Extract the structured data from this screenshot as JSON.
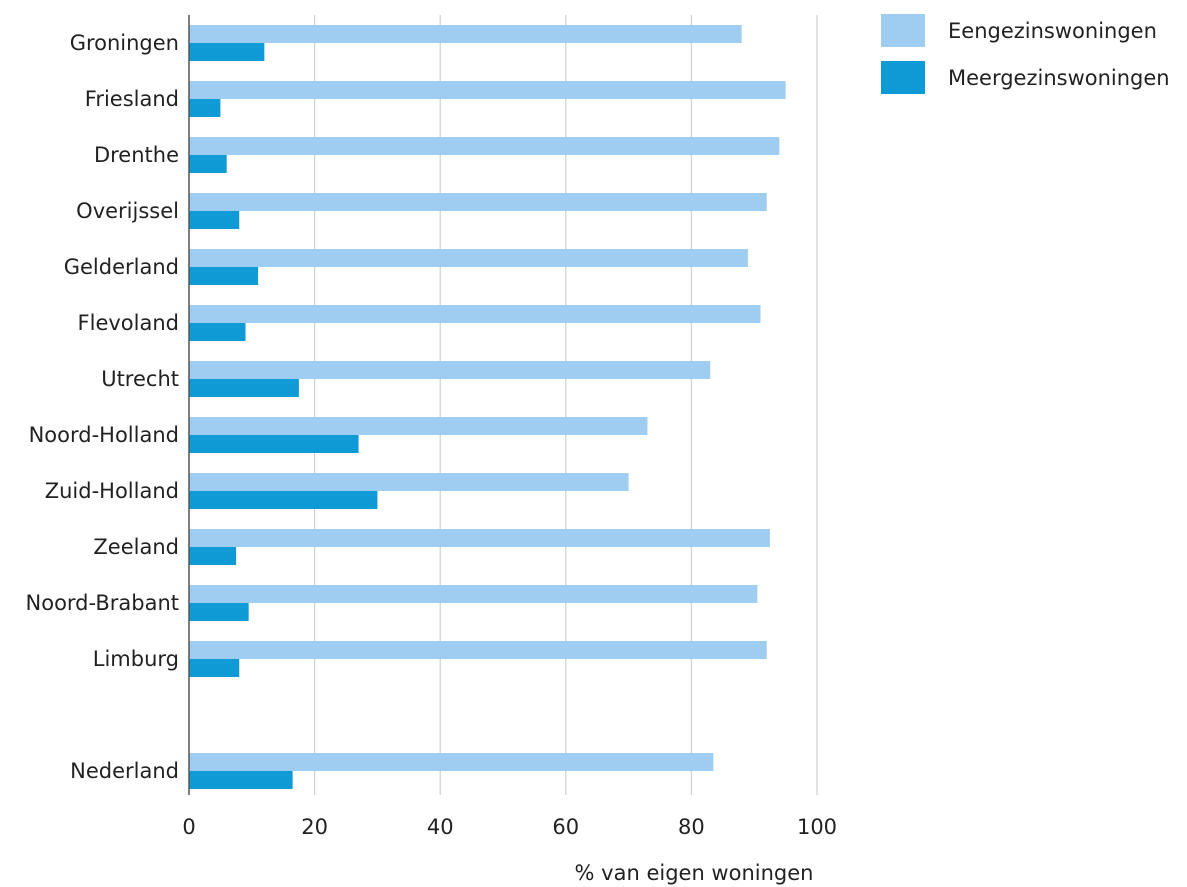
{
  "chart_data": {
    "type": "bar",
    "orientation": "horizontal",
    "categories": [
      "Groningen",
      "Friesland",
      "Drenthe",
      "Overijssel",
      "Gelderland",
      "Flevoland",
      "Utrecht",
      "Noord-Holland",
      "Zuid-Holland",
      "Zeeland",
      "Noord-Brabant",
      "Limburg",
      "Nederland"
    ],
    "series": [
      {
        "name": "Eengezinswoningen",
        "color": "#9fcdf1",
        "values": [
          88,
          95,
          94,
          92,
          89,
          91,
          83,
          73,
          70,
          92.5,
          90.5,
          92,
          83.5
        ]
      },
      {
        "name": "Meergezinswoningen",
        "color": "#0f9ad6",
        "values": [
          12,
          5,
          6,
          8,
          11,
          9,
          17.5,
          27,
          30,
          7.5,
          9.5,
          8,
          16.5
        ]
      }
    ],
    "xlabel": "% van eigen woningen",
    "ylabel": "",
    "xlim": [
      0,
      100
    ],
    "xticks": [
      0,
      20,
      40,
      60,
      80,
      100
    ],
    "grid": true,
    "legend_position": "top-right"
  }
}
